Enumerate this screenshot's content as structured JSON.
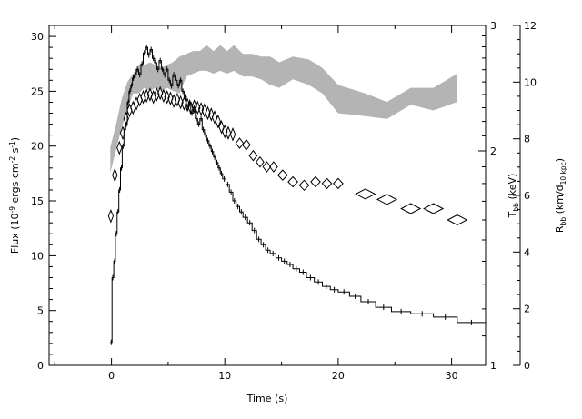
{
  "chart_data": {
    "type": "scatter",
    "xlabel": "Time (s)",
    "ylabel": {
      "pre": "Flux (10",
      "exp1": "-9",
      "mid": " ergs cm",
      "exp2": "-2",
      "mid2": " s",
      "exp3": "-1",
      "post": ")"
    },
    "y2label": {
      "base": "T",
      "sub": "bb",
      "post": " (keV)"
    },
    "y3label": {
      "base": "R",
      "sub": "bb",
      "mid": " (km/d",
      "sub2": "10 kpc",
      "post": ")"
    },
    "xlim": [
      -5.5,
      33
    ],
    "ylim": [
      0,
      31
    ],
    "y2lim": [
      1,
      3
    ],
    "y2scale": "log",
    "y3lim": [
      0,
      12
    ],
    "x_ticks": [
      0,
      10,
      20,
      30
    ],
    "x_tick_labels": [
      "0",
      "10",
      "20",
      "30"
    ],
    "y_ticks": [
      0,
      5,
      10,
      15,
      20,
      25,
      30
    ],
    "y_tick_labels": [
      "0",
      "5",
      "10",
      "15",
      "20",
      "25",
      "30"
    ],
    "y2_ticks": [
      1,
      2,
      3
    ],
    "y2_tick_labels": [
      "1",
      "2",
      "3"
    ],
    "y3_ticks": [
      0,
      2,
      4,
      6,
      8,
      10,
      12
    ],
    "y3_tick_labels": [
      "0",
      "2",
      "4",
      "6",
      "8",
      "10",
      "12"
    ],
    "series": [
      {
        "kind": "step",
        "color": "#000000",
        "points": [
          [
            -0.1,
            2.1
          ],
          [
            0.05,
            8
          ],
          [
            0.2,
            9.5
          ],
          [
            0.35,
            12
          ],
          [
            0.5,
            14
          ],
          [
            0.65,
            16
          ],
          [
            0.8,
            18
          ],
          [
            0.95,
            20
          ],
          [
            1.1,
            21.5
          ],
          [
            1.25,
            22
          ],
          [
            1.4,
            24
          ],
          [
            1.55,
            25
          ],
          [
            1.7,
            25.5
          ],
          [
            1.85,
            26.2
          ],
          [
            2.0,
            26.5
          ],
          [
            2.2,
            27
          ],
          [
            2.4,
            26.5
          ],
          [
            2.6,
            27.5
          ],
          [
            2.8,
            28.5
          ],
          [
            3.0,
            29
          ],
          [
            3.2,
            28.3
          ],
          [
            3.4,
            28.8
          ],
          [
            3.6,
            28
          ],
          [
            3.8,
            27.6
          ],
          [
            4.0,
            27
          ],
          [
            4.2,
            27.8
          ],
          [
            4.4,
            27
          ],
          [
            4.6,
            26.5
          ],
          [
            4.8,
            27
          ],
          [
            5.0,
            26
          ],
          [
            5.2,
            25.5
          ],
          [
            5.4,
            26.5
          ],
          [
            5.6,
            26
          ],
          [
            5.8,
            25.5
          ],
          [
            6.0,
            26
          ],
          [
            6.2,
            25
          ],
          [
            6.4,
            24.5
          ],
          [
            6.6,
            23.6
          ],
          [
            6.8,
            24
          ],
          [
            7.0,
            23
          ],
          [
            7.2,
            23.5
          ],
          [
            7.4,
            22.5
          ],
          [
            7.6,
            22
          ],
          [
            7.8,
            22.5
          ],
          [
            8.0,
            21.5
          ],
          [
            8.2,
            21
          ],
          [
            8.4,
            20.5
          ],
          [
            8.6,
            20
          ],
          [
            8.8,
            19.5
          ],
          [
            9.0,
            19
          ],
          [
            9.2,
            18.5
          ],
          [
            9.4,
            18
          ],
          [
            9.6,
            17.5
          ],
          [
            9.8,
            17
          ],
          [
            10.1,
            16.5
          ],
          [
            10.4,
            15.8
          ],
          [
            10.7,
            15
          ],
          [
            11.0,
            14.5
          ],
          [
            11.3,
            14
          ],
          [
            11.6,
            13.5
          ],
          [
            12.0,
            13
          ],
          [
            12.4,
            12.3
          ],
          [
            12.8,
            11.5
          ],
          [
            13.2,
            11
          ],
          [
            13.6,
            10.5
          ],
          [
            14.0,
            10.2
          ],
          [
            14.5,
            9.8
          ],
          [
            15.0,
            9.5
          ],
          [
            15.5,
            9.2
          ],
          [
            16.0,
            8.8
          ],
          [
            16.6,
            8.5
          ],
          [
            17.2,
            8
          ],
          [
            17.9,
            7.6
          ],
          [
            18.6,
            7.2
          ],
          [
            19.3,
            6.9
          ],
          [
            20.0,
            6.7
          ],
          [
            21.0,
            6.3
          ],
          [
            22.0,
            5.8
          ],
          [
            23.3,
            5.3
          ],
          [
            24.7,
            4.9
          ],
          [
            26.4,
            4.7
          ],
          [
            28.4,
            4.4
          ],
          [
            30.5,
            3.9
          ],
          [
            33.0,
            3.9
          ]
        ]
      },
      {
        "kind": "diamond",
        "color": "#000000",
        "y2_values_keV": [
          [
            -0.05,
            1.62
          ],
          [
            0.3,
            1.85
          ],
          [
            0.7,
            2.02
          ],
          [
            1.0,
            2.12
          ],
          [
            1.3,
            2.22
          ],
          [
            1.6,
            2.28
          ],
          [
            1.9,
            2.3
          ],
          [
            2.2,
            2.33
          ],
          [
            2.5,
            2.36
          ],
          [
            2.8,
            2.38
          ],
          [
            3.1,
            2.39
          ],
          [
            3.4,
            2.4
          ],
          [
            3.7,
            2.38
          ],
          [
            4.0,
            2.4
          ],
          [
            4.3,
            2.41
          ],
          [
            4.6,
            2.39
          ],
          [
            4.9,
            2.38
          ],
          [
            5.2,
            2.37
          ],
          [
            5.5,
            2.35
          ],
          [
            5.8,
            2.36
          ],
          [
            6.1,
            2.34
          ],
          [
            6.4,
            2.33
          ],
          [
            6.7,
            2.32
          ],
          [
            7.0,
            2.3
          ],
          [
            7.3,
            2.31
          ],
          [
            7.6,
            2.3
          ],
          [
            7.9,
            2.29
          ],
          [
            8.2,
            2.28
          ],
          [
            8.5,
            2.26
          ],
          [
            8.8,
            2.25
          ],
          [
            9.1,
            2.23
          ],
          [
            9.4,
            2.2
          ],
          [
            9.7,
            2.16
          ],
          [
            10.0,
            2.13
          ],
          [
            10.3,
            2.12
          ],
          [
            10.7,
            2.11
          ],
          [
            11.3,
            2.05
          ],
          [
            11.9,
            2.04
          ],
          [
            12.5,
            1.97
          ],
          [
            13.1,
            1.93
          ],
          [
            13.7,
            1.9
          ],
          [
            14.3,
            1.9
          ],
          [
            15.1,
            1.85
          ],
          [
            16.0,
            1.81
          ],
          [
            17.0,
            1.79
          ],
          [
            18.0,
            1.81
          ],
          [
            19.0,
            1.8
          ],
          [
            20.0,
            1.8
          ],
          [
            22.4,
            1.74
          ],
          [
            24.3,
            1.71
          ],
          [
            26.4,
            1.66
          ],
          [
            28.4,
            1.66
          ],
          [
            30.5,
            1.6
          ]
        ]
      },
      {
        "kind": "band",
        "color": "#b4b4b4",
        "y3_band_km": [
          [
            -0.1,
            6.8,
            7.7
          ],
          [
            0.4,
            7.6,
            8.5
          ],
          [
            0.9,
            8.4,
            9.4
          ],
          [
            1.4,
            9.0,
            10.0
          ],
          [
            1.9,
            9.6,
            10.3
          ],
          [
            2.4,
            9.6,
            10.6
          ],
          [
            2.9,
            9.8,
            10.6
          ],
          [
            3.4,
            9.7,
            10.7
          ],
          [
            3.9,
            9.8,
            10.6
          ],
          [
            4.4,
            9.7,
            10.5
          ],
          [
            4.9,
            9.8,
            10.6
          ],
          [
            5.4,
            9.7,
            10.7
          ],
          [
            6.0,
            9.6,
            10.9
          ],
          [
            6.6,
            10.2,
            11.0
          ],
          [
            7.2,
            10.3,
            11.1
          ],
          [
            7.8,
            10.4,
            11.1
          ],
          [
            8.4,
            10.4,
            11.3
          ],
          [
            9.0,
            10.3,
            11.1
          ],
          [
            9.6,
            10.4,
            11.3
          ],
          [
            10.2,
            10.3,
            11.1
          ],
          [
            10.8,
            10.4,
            11.3
          ],
          [
            11.6,
            10.2,
            11.0
          ],
          [
            12.4,
            10.2,
            11.0
          ],
          [
            13.2,
            10.1,
            10.9
          ],
          [
            14.0,
            9.9,
            10.9
          ],
          [
            14.8,
            9.8,
            10.7
          ],
          [
            16.0,
            10.1,
            10.9
          ],
          [
            17.4,
            9.9,
            10.8
          ],
          [
            18.6,
            9.6,
            10.5
          ],
          [
            20.0,
            8.9,
            9.9
          ],
          [
            22.4,
            8.8,
            9.6
          ],
          [
            24.3,
            8.7,
            9.3
          ],
          [
            26.4,
            9.2,
            9.8
          ],
          [
            28.4,
            9.0,
            9.8
          ],
          [
            30.5,
            9.3,
            10.3
          ]
        ]
      }
    ]
  }
}
